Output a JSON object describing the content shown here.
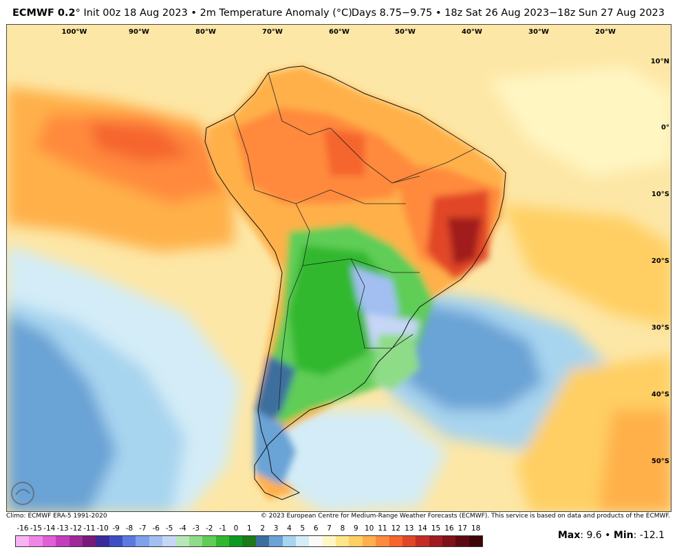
{
  "header": {
    "model": "ECMWF 0.2",
    "degree_sign": "°",
    "init_and_field": "Init 00z 18 Aug 2023 • 2m Temperature Anomaly (°C)",
    "valid_period": "Days 8.75−9.75 • 18z Sat 26 Aug 2023−18z Sun 27 Aug 2023"
  },
  "map": {
    "lon_labels": [
      "100°W",
      "90°W",
      "80°W",
      "70°W",
      "60°W",
      "50°W",
      "40°W",
      "30°W",
      "20°W"
    ],
    "lat_labels": [
      "10°N",
      "0°",
      "10°S",
      "20°S",
      "30°S",
      "40°S",
      "50°S"
    ],
    "logo_text": "WeatherBELL"
  },
  "footer": {
    "climo": "Climo: ECMWF ERA-5 1991-2020",
    "copyright": "© 2023 European Centre for Medium-Range Weather Forecasts (ECMWF). This service is based on data and products of the ECMWF."
  },
  "colorbar": {
    "ticks": [
      "-16",
      "-15",
      "-14",
      "-13",
      "-12",
      "-11",
      "-10",
      "-9",
      "-8",
      "-7",
      "-6",
      "-5",
      "-4",
      "-3",
      "-2",
      "-1",
      "0",
      "1",
      "2",
      "3",
      "4",
      "5",
      "6",
      "7",
      "8",
      "9",
      "10",
      "11",
      "12",
      "13",
      "14",
      "15",
      "16",
      "17",
      "18"
    ],
    "colors": [
      "#f6b4f1",
      "#ef86e6",
      "#e05fd6",
      "#c53cbd",
      "#a02a99",
      "#7a1a7a",
      "#3b2b9a",
      "#3c4fc4",
      "#5b7ae0",
      "#7fa0ea",
      "#a3bff2",
      "#c6d6f6",
      "#b9e6b9",
      "#8fdc88",
      "#5fcd57",
      "#31b82e",
      "#0e9a22",
      "#1c7a19",
      "#3c6e9e",
      "#6aa3d6",
      "#a7d4ef",
      "#d3ecf7",
      "#fafafa",
      "#fff6c2",
      "#ffe58a",
      "#ffcf63",
      "#ffb04a",
      "#ff8a3d",
      "#f5652e",
      "#e14628",
      "#c42d25",
      "#a11a1f",
      "#7e111a",
      "#5c0a12",
      "#3f0407"
    ]
  },
  "stats": {
    "max_label": "Max",
    "max_value": "9.6",
    "min_label": "Min",
    "min_value": "-12.1",
    "separator": "•"
  },
  "colors": {
    "warm_strong": "#c42d25",
    "warm": "#f5652e",
    "warm_light": "#ffb04a",
    "neutral": "#fde7a6",
    "cool": "#6aa3d6",
    "cool_strong": "#3c4fc4",
    "green": "#31b82e",
    "purple": "#a3bff2"
  }
}
